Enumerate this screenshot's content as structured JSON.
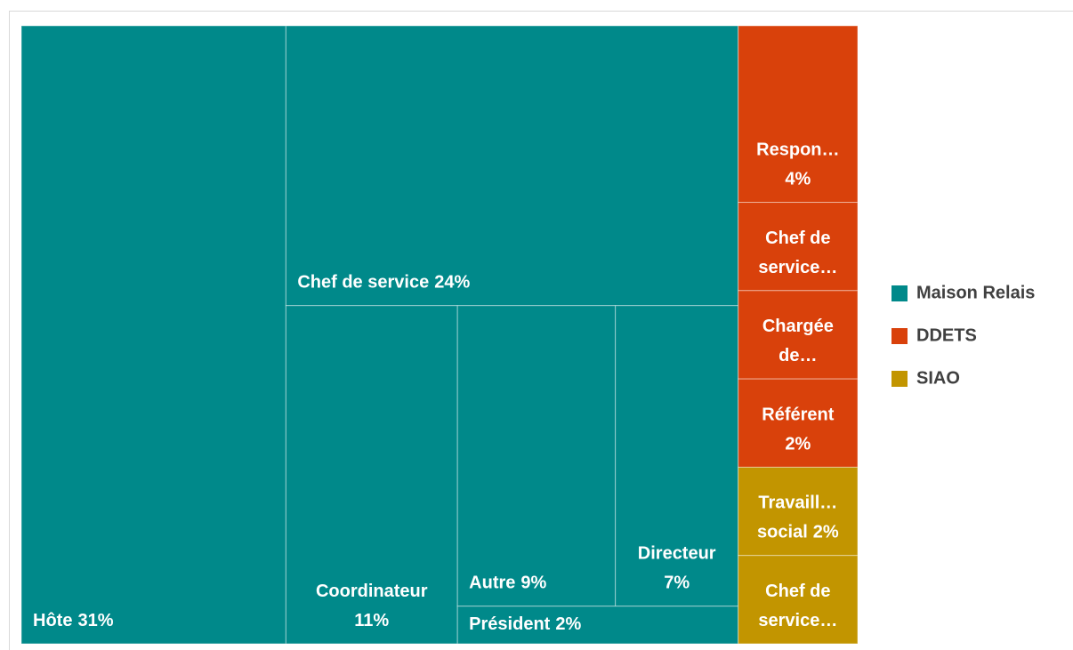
{
  "chart_data": {
    "type": "treemap",
    "legend": "right",
    "series": [
      {
        "name": "Maison Relais",
        "color": "#00898a",
        "categories": [
          "Hôte",
          "Chef de service",
          "Coordinateur",
          "Autre",
          "Directeur",
          "Président"
        ],
        "values": [
          31,
          24,
          11,
          9,
          7,
          2
        ],
        "value_labels": [
          "31%",
          "24%",
          "11%",
          "9%",
          "7%",
          "2%"
        ]
      },
      {
        "name": "DDETS",
        "color": "#d9410b",
        "categories": [
          "Respon…",
          "Chef de service…",
          "Chargée de…",
          "Référent"
        ],
        "values": [
          4,
          2,
          2,
          2
        ],
        "value_labels": [
          "4%",
          null,
          null,
          "2%"
        ]
      },
      {
        "name": "SIAO",
        "color": "#c29500",
        "categories": [
          "Travaill… social",
          "Chef de service…"
        ],
        "values": [
          2,
          2
        ],
        "value_labels": [
          "2%",
          null
        ]
      }
    ]
  }
}
